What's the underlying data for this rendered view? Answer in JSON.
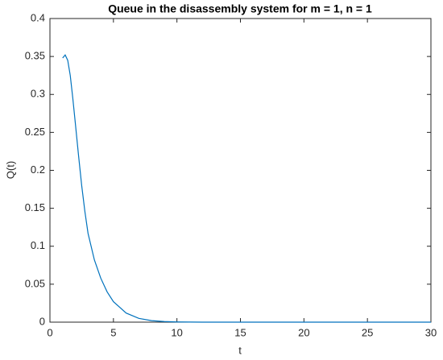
{
  "chart_data": {
    "type": "line",
    "title": "Queue in the disassembly system for m = 1, n = 1",
    "x_label": "t",
    "y_label": "Q(t)",
    "x": [
      1,
      1.2,
      1.4,
      1.6,
      1.8,
      2,
      2.25,
      2.5,
      2.75,
      3,
      3.5,
      4,
      4.5,
      5,
      6,
      7,
      8,
      9,
      10,
      12,
      15,
      20,
      25,
      30
    ],
    "series": [
      {
        "color": "#0072bd",
        "values": [
          0.348,
          0.352,
          0.345,
          0.325,
          0.295,
          0.262,
          0.22,
          0.18,
          0.146,
          0.117,
          0.082,
          0.058,
          0.04,
          0.027,
          0.012,
          0.005,
          0.002,
          0.0008,
          0.0003,
          0,
          0,
          0,
          0,
          0
        ]
      }
    ],
    "xlim": [
      0,
      30
    ],
    "xticks": [
      0,
      5,
      10,
      15,
      20,
      25,
      30
    ],
    "ylim": [
      0,
      0.4
    ],
    "yticks": [
      0,
      0.05,
      0.1,
      0.15,
      0.2,
      0.25,
      0.3,
      0.35,
      0.4
    ],
    "grid": false
  }
}
